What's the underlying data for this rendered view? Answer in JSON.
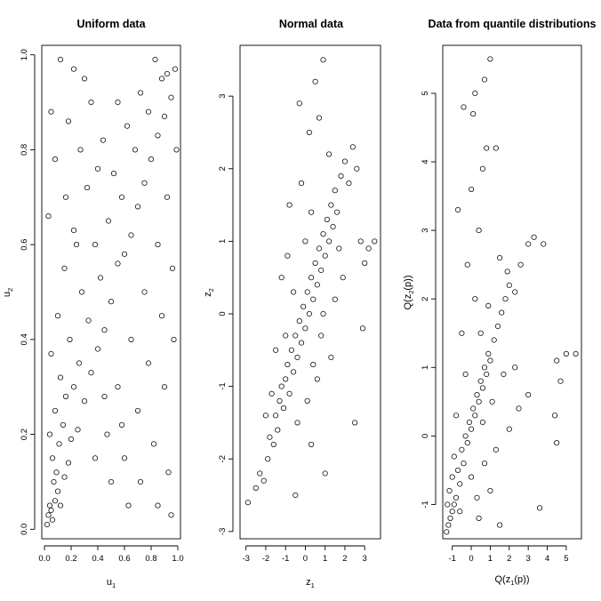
{
  "chart_data": [
    {
      "type": "scatter",
      "title": "Uniform data",
      "xlabel": {
        "base": "u",
        "sub": "1"
      },
      "ylabel": {
        "base": "u",
        "sub": "2"
      },
      "xlim": [
        -0.02,
        1.02
      ],
      "ylim": [
        -0.02,
        1.02
      ],
      "xticks": [
        0.0,
        0.2,
        0.4,
        0.6,
        0.8,
        1.0
      ],
      "yticks": [
        0.0,
        0.2,
        0.4,
        0.6,
        0.8,
        1.0
      ],
      "xtick_labels": [
        "0.0",
        "0.2",
        "0.4",
        "0.6",
        "0.8",
        "1.0"
      ],
      "ytick_labels": [
        "0.0",
        "0.2",
        "0.4",
        "0.6",
        "0.8",
        "1.0"
      ],
      "grid": false,
      "legend": "none",
      "marker": "open-circle",
      "points": [
        [
          0.02,
          0.01
        ],
        [
          0.03,
          0.03
        ],
        [
          0.05,
          0.04
        ],
        [
          0.06,
          0.02
        ],
        [
          0.08,
          0.06
        ],
        [
          0.04,
          0.05
        ],
        [
          0.1,
          0.08
        ],
        [
          0.07,
          0.1
        ],
        [
          0.12,
          0.05
        ],
        [
          0.09,
          0.12
        ],
        [
          0.15,
          0.11
        ],
        [
          0.06,
          0.15
        ],
        [
          0.11,
          0.18
        ],
        [
          0.04,
          0.2
        ],
        [
          0.18,
          0.14
        ],
        [
          0.14,
          0.22
        ],
        [
          0.2,
          0.19
        ],
        [
          0.08,
          0.25
        ],
        [
          0.25,
          0.21
        ],
        [
          0.16,
          0.28
        ],
        [
          0.22,
          0.3
        ],
        [
          0.12,
          0.32
        ],
        [
          0.3,
          0.27
        ],
        [
          0.26,
          0.35
        ],
        [
          0.05,
          0.37
        ],
        [
          0.35,
          0.33
        ],
        [
          0.19,
          0.4
        ],
        [
          0.4,
          0.38
        ],
        [
          0.1,
          0.45
        ],
        [
          0.33,
          0.44
        ],
        [
          0.45,
          0.42
        ],
        [
          0.28,
          0.5
        ],
        [
          0.5,
          0.48
        ],
        [
          0.15,
          0.55
        ],
        [
          0.42,
          0.53
        ],
        [
          0.55,
          0.56
        ],
        [
          0.38,
          0.6
        ],
        [
          0.6,
          0.58
        ],
        [
          0.22,
          0.63
        ],
        [
          0.48,
          0.65
        ],
        [
          0.65,
          0.62
        ],
        [
          0.58,
          0.7
        ],
        [
          0.7,
          0.68
        ],
        [
          0.32,
          0.72
        ],
        [
          0.52,
          0.75
        ],
        [
          0.75,
          0.73
        ],
        [
          0.68,
          0.8
        ],
        [
          0.8,
          0.78
        ],
        [
          0.44,
          0.82
        ],
        [
          0.62,
          0.85
        ],
        [
          0.85,
          0.83
        ],
        [
          0.78,
          0.88
        ],
        [
          0.9,
          0.87
        ],
        [
          0.55,
          0.9
        ],
        [
          0.72,
          0.92
        ],
        [
          0.95,
          0.91
        ],
        [
          0.88,
          0.95
        ],
        [
          0.98,
          0.97
        ],
        [
          0.83,
          0.99
        ],
        [
          0.92,
          0.96
        ],
        [
          0.12,
          0.99
        ],
        [
          0.22,
          0.97
        ],
        [
          0.3,
          0.95
        ],
        [
          0.05,
          0.88
        ],
        [
          0.18,
          0.86
        ],
        [
          0.35,
          0.9
        ],
        [
          0.08,
          0.78
        ],
        [
          0.27,
          0.8
        ],
        [
          0.4,
          0.76
        ],
        [
          0.16,
          0.7
        ],
        [
          0.03,
          0.66
        ],
        [
          0.24,
          0.6
        ],
        [
          0.47,
          0.2
        ],
        [
          0.6,
          0.15
        ],
        [
          0.72,
          0.1
        ],
        [
          0.85,
          0.05
        ],
        [
          0.95,
          0.03
        ],
        [
          0.55,
          0.3
        ],
        [
          0.7,
          0.25
        ],
        [
          0.82,
          0.18
        ],
        [
          0.93,
          0.12
        ],
        [
          0.65,
          0.4
        ],
        [
          0.78,
          0.35
        ],
        [
          0.9,
          0.3
        ],
        [
          0.75,
          0.5
        ],
        [
          0.88,
          0.45
        ],
        [
          0.97,
          0.4
        ],
        [
          0.85,
          0.6
        ],
        [
          0.96,
          0.55
        ],
        [
          0.92,
          0.7
        ],
        [
          0.99,
          0.8
        ],
        [
          0.5,
          0.1
        ],
        [
          0.38,
          0.15
        ],
        [
          0.63,
          0.05
        ],
        [
          0.45,
          0.28
        ],
        [
          0.58,
          0.22
        ]
      ]
    },
    {
      "type": "scatter",
      "title": "Normal data",
      "xlabel": {
        "base": "z",
        "sub": "1"
      },
      "ylabel": {
        "base": "z",
        "sub": "2"
      },
      "xlim": [
        -3.3,
        3.8
      ],
      "ylim": [
        -3.1,
        3.7
      ],
      "xticks": [
        -3,
        -2,
        -1,
        0,
        1,
        2,
        3
      ],
      "yticks": [
        -3,
        -2,
        -1,
        0,
        1,
        2,
        3
      ],
      "xtick_labels": [
        "-3",
        "-2",
        "-1",
        "0",
        "1",
        "2",
        "3"
      ],
      "ytick_labels": [
        "-3",
        "-2",
        "-1",
        "0",
        "1",
        "2",
        "3"
      ],
      "grid": false,
      "legend": "none",
      "marker": "open-circle",
      "points": [
        [
          -2.9,
          -2.6
        ],
        [
          -2.5,
          -2.4
        ],
        [
          -2.3,
          -2.2
        ],
        [
          -2.1,
          -2.3
        ],
        [
          -1.9,
          -2.0
        ],
        [
          -1.8,
          -1.7
        ],
        [
          -1.6,
          -1.8
        ],
        [
          -1.5,
          -1.4
        ],
        [
          -1.4,
          -1.6
        ],
        [
          -1.3,
          -1.2
        ],
        [
          -1.2,
          -1.0
        ],
        [
          -1.1,
          -1.3
        ],
        [
          -1.0,
          -0.9
        ],
        [
          -0.9,
          -0.7
        ],
        [
          -0.8,
          -1.1
        ],
        [
          -0.7,
          -0.5
        ],
        [
          -0.6,
          -0.8
        ],
        [
          -0.5,
          -0.3
        ],
        [
          -0.4,
          -0.6
        ],
        [
          -0.3,
          -0.1
        ],
        [
          -0.2,
          -0.4
        ],
        [
          -0.1,
          0.1
        ],
        [
          0.0,
          -0.2
        ],
        [
          0.1,
          0.3
        ],
        [
          0.2,
          0.0
        ],
        [
          0.3,
          0.5
        ],
        [
          0.4,
          0.2
        ],
        [
          0.5,
          0.7
        ],
        [
          0.6,
          0.4
        ],
        [
          0.7,
          0.9
        ],
        [
          0.8,
          0.6
        ],
        [
          0.9,
          1.1
        ],
        [
          1.0,
          0.8
        ],
        [
          1.1,
          1.3
        ],
        [
          1.2,
          1.0
        ],
        [
          1.3,
          1.5
        ],
        [
          1.4,
          1.2
        ],
        [
          1.5,
          1.7
        ],
        [
          1.6,
          1.4
        ],
        [
          1.8,
          1.9
        ],
        [
          2.0,
          2.1
        ],
        [
          2.2,
          1.8
        ],
        [
          2.4,
          2.3
        ],
        [
          2.6,
          2.0
        ],
        [
          2.8,
          1.0
        ],
        [
          3.0,
          0.7
        ],
        [
          3.2,
          0.9
        ],
        [
          3.5,
          1.0
        ],
        [
          2.9,
          -0.2
        ],
        [
          2.5,
          -1.5
        ],
        [
          1.0,
          -2.2
        ],
        [
          0.3,
          -1.8
        ],
        [
          -0.5,
          -2.5
        ],
        [
          -0.3,
          2.9
        ],
        [
          0.5,
          3.2
        ],
        [
          0.9,
          3.5
        ],
        [
          0.2,
          2.5
        ],
        [
          -0.8,
          1.5
        ],
        [
          -1.2,
          0.5
        ],
        [
          -1.5,
          -0.5
        ],
        [
          0.7,
          2.7
        ],
        [
          1.2,
          2.2
        ],
        [
          -0.2,
          1.8
        ],
        [
          0.0,
          1.0
        ],
        [
          -0.6,
          0.3
        ],
        [
          0.4,
          -0.7
        ],
        [
          0.8,
          -0.3
        ],
        [
          1.5,
          0.2
        ],
        [
          1.9,
          0.5
        ],
        [
          -1.0,
          -0.3
        ],
        [
          -1.7,
          -1.1
        ],
        [
          -2.0,
          -1.4
        ],
        [
          0.1,
          -1.2
        ],
        [
          0.6,
          -0.9
        ],
        [
          1.3,
          -0.6
        ],
        [
          -0.4,
          -1.5
        ],
        [
          0.9,
          0.0
        ],
        [
          1.7,
          0.9
        ],
        [
          -0.9,
          0.8
        ],
        [
          0.3,
          1.4
        ]
      ]
    },
    {
      "type": "scatter",
      "title": "Data from quantile distributions",
      "xlabel": {
        "pre": "Q(z",
        "sub1": "1",
        "post": "(p))"
      },
      "ylabel": {
        "pre": "Q(z",
        "sub1": "2",
        "post": "(p))"
      },
      "xlim": [
        -1.5,
        5.8
      ],
      "ylim": [
        -1.5,
        5.7
      ],
      "xticks": [
        -1,
        0,
        1,
        2,
        3,
        4,
        5
      ],
      "yticks": [
        -1,
        0,
        1,
        2,
        3,
        4,
        5
      ],
      "xtick_labels": [
        "-1",
        "0",
        "1",
        "2",
        "3",
        "4",
        "5"
      ],
      "ytick_labels": [
        "-1",
        "0",
        "1",
        "2",
        "3",
        "4",
        "5"
      ],
      "grid": false,
      "legend": "none",
      "marker": "open-circle",
      "points": [
        [
          -1.3,
          -1.4
        ],
        [
          -1.2,
          -1.3
        ],
        [
          -1.1,
          -1.2
        ],
        [
          -1.0,
          -1.1
        ],
        [
          -0.9,
          -1.0
        ],
        [
          -1.25,
          -1.0
        ],
        [
          -1.15,
          -0.8
        ],
        [
          -1.0,
          -0.6
        ],
        [
          -0.8,
          -0.9
        ],
        [
          -0.7,
          -0.5
        ],
        [
          -0.6,
          -0.7
        ],
        [
          -0.9,
          -0.3
        ],
        [
          -0.5,
          -0.2
        ],
        [
          -0.4,
          -0.4
        ],
        [
          -0.3,
          0.0
        ],
        [
          -0.2,
          -0.1
        ],
        [
          -0.1,
          0.2
        ],
        [
          0.0,
          0.1
        ],
        [
          0.1,
          0.4
        ],
        [
          0.2,
          0.3
        ],
        [
          0.3,
          0.6
        ],
        [
          0.4,
          0.5
        ],
        [
          0.5,
          0.8
        ],
        [
          0.6,
          0.7
        ],
        [
          0.7,
          1.0
        ],
        [
          0.8,
          0.9
        ],
        [
          0.9,
          1.2
        ],
        [
          1.0,
          1.1
        ],
        [
          1.2,
          1.4
        ],
        [
          1.4,
          1.6
        ],
        [
          1.6,
          1.8
        ],
        [
          1.8,
          2.0
        ],
        [
          2.0,
          2.2
        ],
        [
          2.3,
          2.1
        ],
        [
          2.6,
          2.5
        ],
        [
          3.0,
          2.8
        ],
        [
          3.3,
          2.9
        ],
        [
          3.8,
          2.8
        ],
        [
          4.5,
          1.1
        ],
        [
          5.0,
          1.2
        ],
        [
          5.5,
          1.2
        ],
        [
          4.7,
          0.8
        ],
        [
          4.4,
          0.3
        ],
        [
          4.5,
          -0.1
        ],
        [
          3.6,
          -1.05
        ],
        [
          1.5,
          -1.3
        ],
        [
          0.3,
          -0.9
        ],
        [
          -0.4,
          4.8
        ],
        [
          0.2,
          5.0
        ],
        [
          0.7,
          5.2
        ],
        [
          1.0,
          5.5
        ],
        [
          0.1,
          4.7
        ],
        [
          0.8,
          4.2
        ],
        [
          1.3,
          4.2
        ],
        [
          -0.7,
          3.3
        ],
        [
          0.0,
          3.6
        ],
        [
          0.6,
          3.9
        ],
        [
          0.4,
          3.0
        ],
        [
          -0.2,
          2.5
        ],
        [
          0.2,
          2.0
        ],
        [
          -0.5,
          1.5
        ],
        [
          0.9,
          1.9
        ],
        [
          1.5,
          2.6
        ],
        [
          1.9,
          2.4
        ],
        [
          -0.3,
          0.9
        ],
        [
          0.6,
          0.2
        ],
        [
          1.1,
          0.5
        ],
        [
          1.7,
          0.9
        ],
        [
          2.3,
          1.0
        ],
        [
          -0.8,
          0.3
        ],
        [
          0.0,
          -0.6
        ],
        [
          0.7,
          -0.4
        ],
        [
          1.3,
          -0.2
        ],
        [
          2.0,
          0.1
        ],
        [
          -0.6,
          -1.1
        ],
        [
          0.4,
          -1.2
        ],
        [
          1.0,
          -0.8
        ],
        [
          2.5,
          0.4
        ],
        [
          3.0,
          0.6
        ],
        [
          0.5,
          1.5
        ]
      ]
    }
  ]
}
